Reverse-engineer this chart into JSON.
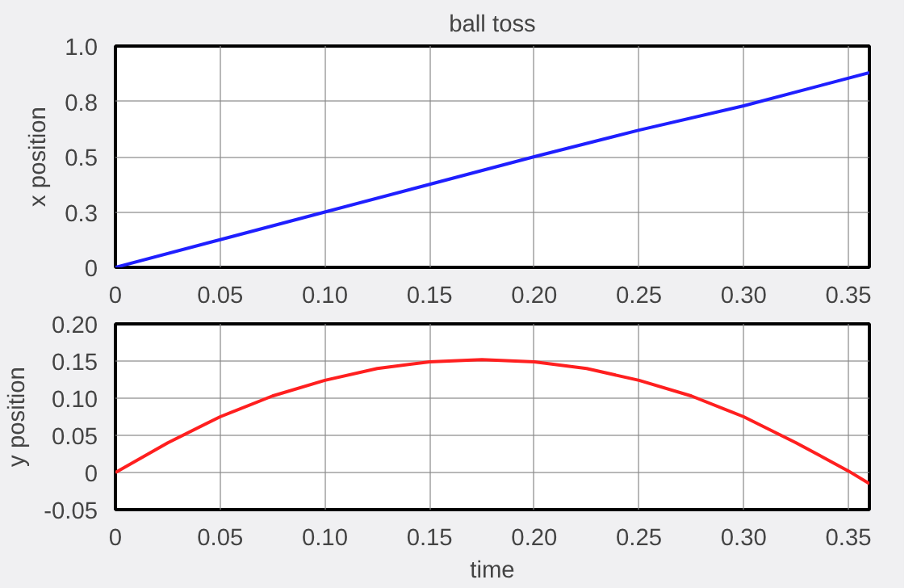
{
  "chart_data": [
    {
      "type": "line",
      "title": "ball toss",
      "ylabel": "x position",
      "x": [
        0,
        0.05,
        0.1,
        0.15,
        0.2,
        0.25,
        0.3,
        0.36
      ],
      "series": [
        {
          "color": "#1f1fff",
          "values": [
            0,
            0.125,
            0.25,
            0.375,
            0.5,
            0.62,
            0.73,
            0.88
          ]
        }
      ],
      "xlim": [
        0,
        0.36
      ],
      "ylim": [
        0,
        1.0
      ],
      "grid": true,
      "line_style": "solid",
      "xticks": [
        0,
        0.05,
        {
          "value": 0.1,
          "label": "0.10"
        },
        0.15,
        {
          "value": 0.2,
          "label": "0.20"
        },
        0.25,
        {
          "value": 0.3,
          "label": "0.30"
        },
        0.35
      ],
      "yticks": [
        0,
        {
          "value": 0.25,
          "label": "0.3"
        },
        0.5,
        {
          "value": 0.75,
          "label": "0.8"
        },
        {
          "value": 1.0,
          "label": "1.0"
        }
      ]
    },
    {
      "type": "line",
      "xlabel": "time",
      "ylabel": "y position",
      "x": [
        0,
        0.025,
        0.05,
        0.075,
        0.1,
        0.125,
        0.15,
        0.175,
        0.2,
        0.225,
        0.25,
        0.275,
        0.3,
        0.325,
        0.35,
        0.36
      ],
      "series": [
        {
          "color": "#ff1f1f",
          "values": [
            0,
            0.04,
            0.075,
            0.103,
            0.124,
            0.14,
            0.149,
            0.152,
            0.149,
            0.14,
            0.124,
            0.103,
            0.075,
            0.04,
            0.002,
            -0.015
          ]
        }
      ],
      "xlim": [
        0,
        0.36
      ],
      "ylim": [
        -0.05,
        0.2
      ],
      "grid": true,
      "line_style": "solid",
      "xticks": [
        0,
        0.05,
        {
          "value": 0.1,
          "label": "0.10"
        },
        0.15,
        {
          "value": 0.2,
          "label": "0.20"
        },
        0.25,
        {
          "value": 0.3,
          "label": "0.30"
        },
        0.35
      ],
      "yticks": [
        -0.05,
        0,
        0.05,
        {
          "value": 0.1,
          "label": "0.10"
        },
        0.15,
        {
          "value": 0.2,
          "label": "0.20"
        }
      ]
    }
  ]
}
